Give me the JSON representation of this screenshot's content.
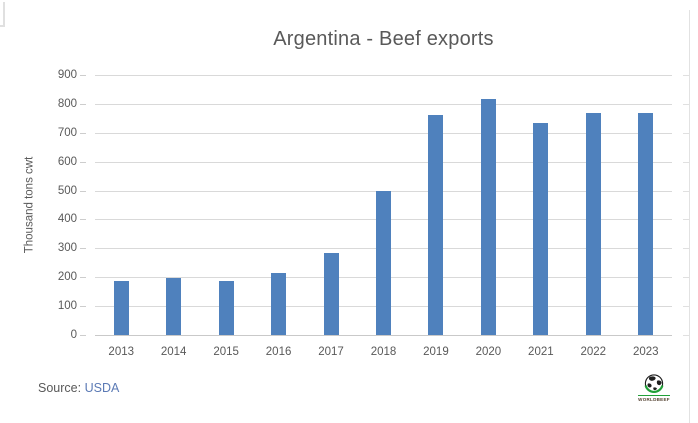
{
  "chart_data": {
    "type": "bar",
    "title": "Argentina - Beef exports",
    "xlabel": "",
    "ylabel": "Thousand tons cwt",
    "categories": [
      "2013",
      "2014",
      "2015",
      "2016",
      "2017",
      "2018",
      "2019",
      "2020",
      "2021",
      "2022",
      "2023"
    ],
    "values": [
      186,
      197,
      186,
      214,
      283,
      500,
      762,
      818,
      734,
      768,
      767
    ],
    "ylim": [
      0,
      900
    ],
    "ytick_step": 100,
    "grid": "on",
    "legend": "none",
    "bar_color": "#4f81bd"
  },
  "footer": {
    "source_label": "Source:",
    "source_value": "USDA"
  },
  "logo": {
    "icon": "globe-icon",
    "text": "WORLDBEEF",
    "globe_dark": "#1f1f1f",
    "globe_green": "#21a038",
    "text_color": "#53402f"
  },
  "colors": {
    "background": "#ffffff",
    "title_text": "#595959",
    "axis_text": "#595959",
    "gridline": "#d9d9d9",
    "axis_line": "#c9c9c9",
    "frame_border": "#e2e2e2",
    "bar": "#4f81bd",
    "source_value": "#5b7ab5"
  }
}
